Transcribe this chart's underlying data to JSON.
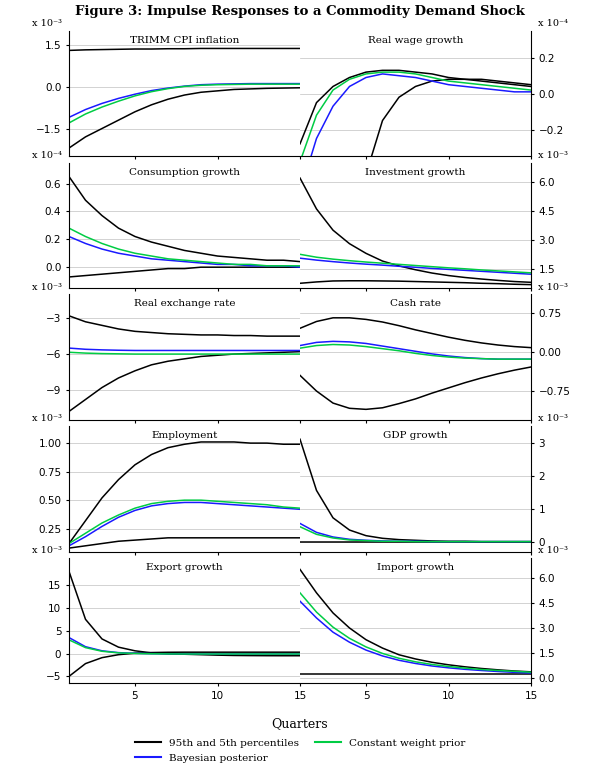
{
  "title": "Figure 3: Impulse Responses to a Commodity Demand Shock",
  "xlabel": "Quarters",
  "quarters": 15,
  "subplots": [
    {
      "title": "TRIMM CPI inflation",
      "scale_label": "x 10⁻³",
      "scale_side": "left",
      "ylim": [
        -2.5,
        2.0
      ],
      "yticks": [
        -1.5,
        0.0,
        1.5
      ],
      "black_upper": [
        1.3,
        1.32,
        1.33,
        1.34,
        1.35,
        1.35,
        1.36,
        1.36,
        1.37,
        1.37,
        1.37,
        1.37,
        1.37,
        1.37,
        1.37
      ],
      "black_lower": [
        -2.2,
        -1.8,
        -1.5,
        -1.2,
        -0.9,
        -0.65,
        -0.45,
        -0.3,
        -0.2,
        -0.15,
        -0.1,
        -0.08,
        -0.06,
        -0.05,
        -0.04
      ],
      "blue": [
        -1.1,
        -0.82,
        -0.6,
        -0.42,
        -0.27,
        -0.14,
        -0.05,
        0.02,
        0.07,
        0.09,
        0.1,
        0.11,
        0.11,
        0.11,
        0.11
      ],
      "green": [
        -1.3,
        -0.98,
        -0.73,
        -0.52,
        -0.33,
        -0.18,
        -0.07,
        0.01,
        0.05,
        0.07,
        0.08,
        0.09,
        0.09,
        0.09,
        0.09
      ]
    },
    {
      "title": "Real wage growth",
      "scale_label": "x 10⁻⁴",
      "scale_side": "right",
      "ylim": [
        -0.35,
        0.35
      ],
      "yticks": [
        -0.2,
        0.0,
        0.2
      ],
      "black_upper": [
        -0.28,
        -0.05,
        0.04,
        0.09,
        0.12,
        0.13,
        0.13,
        0.12,
        0.11,
        0.09,
        0.08,
        0.07,
        0.06,
        0.05,
        0.04
      ],
      "black_lower": [
        -3.0,
        -2.2,
        -1.5,
        -0.9,
        -0.45,
        -0.15,
        -0.02,
        0.04,
        0.07,
        0.08,
        0.08,
        0.08,
        0.07,
        0.06,
        0.05
      ],
      "blue": [
        -0.55,
        -0.25,
        -0.07,
        0.04,
        0.09,
        0.11,
        0.1,
        0.09,
        0.07,
        0.05,
        0.04,
        0.03,
        0.02,
        0.01,
        0.01
      ],
      "green": [
        -0.38,
        -0.12,
        0.02,
        0.08,
        0.11,
        0.12,
        0.12,
        0.11,
        0.09,
        0.07,
        0.06,
        0.05,
        0.04,
        0.03,
        0.02
      ]
    },
    {
      "title": "Consumption growth",
      "scale_label": "x 10⁻⁴",
      "scale_side": "left",
      "ylim": [
        -0.15,
        0.75
      ],
      "yticks": [
        0.0,
        0.2,
        0.4,
        0.6
      ],
      "black_upper": [
        0.65,
        0.48,
        0.37,
        0.28,
        0.22,
        0.18,
        0.15,
        0.12,
        0.1,
        0.08,
        0.07,
        0.06,
        0.05,
        0.05,
        0.04
      ],
      "black_lower": [
        -0.07,
        -0.06,
        -0.05,
        -0.04,
        -0.03,
        -0.02,
        -0.01,
        -0.01,
        0.0,
        0.0,
        0.0,
        0.0,
        0.0,
        0.0,
        0.0
      ],
      "blue": [
        0.22,
        0.17,
        0.13,
        0.1,
        0.08,
        0.06,
        0.05,
        0.04,
        0.03,
        0.02,
        0.02,
        0.01,
        0.01,
        0.01,
        0.0
      ],
      "green": [
        0.28,
        0.22,
        0.17,
        0.13,
        0.1,
        0.08,
        0.06,
        0.05,
        0.04,
        0.03,
        0.02,
        0.02,
        0.01,
        0.01,
        0.01
      ]
    },
    {
      "title": "Investment growth",
      "scale_label": "x 10⁻³",
      "scale_side": "right",
      "ylim": [
        0.5,
        7.0
      ],
      "yticks": [
        1.5,
        3.0,
        4.5,
        6.0
      ],
      "black_upper": [
        6.2,
        4.6,
        3.5,
        2.8,
        2.3,
        1.9,
        1.65,
        1.45,
        1.28,
        1.15,
        1.05,
        0.97,
        0.9,
        0.84,
        0.8
      ],
      "black_lower": [
        0.75,
        0.82,
        0.87,
        0.88,
        0.88,
        0.87,
        0.86,
        0.84,
        0.82,
        0.8,
        0.78,
        0.75,
        0.73,
        0.7,
        0.68
      ],
      "blue": [
        2.05,
        1.95,
        1.87,
        1.8,
        1.74,
        1.69,
        1.63,
        1.58,
        1.52,
        1.47,
        1.42,
        1.37,
        1.32,
        1.27,
        1.22
      ],
      "green": [
        2.25,
        2.1,
        2.0,
        1.92,
        1.85,
        1.79,
        1.73,
        1.67,
        1.61,
        1.55,
        1.5,
        1.44,
        1.39,
        1.34,
        1.29
      ]
    },
    {
      "title": "Real exchange rate",
      "scale_label": "x 10⁻³",
      "scale_side": "left",
      "ylim": [
        -11.5,
        -1.0
      ],
      "yticks": [
        -9,
        -6,
        -3
      ],
      "black_upper": [
        -2.8,
        -3.3,
        -3.6,
        -3.9,
        -4.1,
        -4.2,
        -4.3,
        -4.35,
        -4.4,
        -4.4,
        -4.45,
        -4.45,
        -4.5,
        -4.5,
        -4.5
      ],
      "black_lower": [
        -10.8,
        -9.8,
        -8.8,
        -8.0,
        -7.4,
        -6.9,
        -6.6,
        -6.4,
        -6.2,
        -6.1,
        -6.0,
        -5.95,
        -5.9,
        -5.85,
        -5.8
      ],
      "blue": [
        -5.5,
        -5.6,
        -5.65,
        -5.68,
        -5.7,
        -5.7,
        -5.7,
        -5.7,
        -5.7,
        -5.7,
        -5.7,
        -5.7,
        -5.7,
        -5.7,
        -5.7
      ],
      "green": [
        -5.85,
        -5.92,
        -5.96,
        -5.98,
        -6.0,
        -6.0,
        -6.0,
        -6.0,
        -6.0,
        -6.0,
        -6.0,
        -6.0,
        -6.0,
        -6.0,
        -6.0
      ]
    },
    {
      "title": "Cash rate",
      "scale_label": "x 10⁻³",
      "scale_side": "right",
      "ylim": [
        -1.3,
        1.1
      ],
      "yticks": [
        -0.75,
        0.0,
        0.75
      ],
      "black_upper": [
        0.45,
        0.58,
        0.65,
        0.65,
        0.62,
        0.57,
        0.5,
        0.42,
        0.35,
        0.28,
        0.22,
        0.17,
        0.13,
        0.1,
        0.08
      ],
      "black_lower": [
        -0.45,
        -0.75,
        -0.98,
        -1.08,
        -1.1,
        -1.07,
        -0.99,
        -0.9,
        -0.79,
        -0.69,
        -0.59,
        -0.5,
        -0.42,
        -0.35,
        -0.29
      ],
      "blue": [
        0.12,
        0.18,
        0.2,
        0.19,
        0.16,
        0.11,
        0.06,
        0.01,
        -0.04,
        -0.08,
        -0.11,
        -0.13,
        -0.14,
        -0.14,
        -0.14
      ],
      "green": [
        0.07,
        0.12,
        0.14,
        0.13,
        0.1,
        0.06,
        0.02,
        -0.03,
        -0.07,
        -0.1,
        -0.12,
        -0.13,
        -0.14,
        -0.14,
        -0.14
      ]
    },
    {
      "title": "Employment",
      "scale_label": "x 10⁻³",
      "scale_side": "left",
      "ylim": [
        0.05,
        1.15
      ],
      "yticks": [
        0.25,
        0.5,
        0.75,
        1.0
      ],
      "black_upper": [
        0.12,
        0.32,
        0.52,
        0.68,
        0.81,
        0.9,
        0.96,
        0.99,
        1.01,
        1.01,
        1.01,
        1.0,
        1.0,
        0.99,
        0.99
      ],
      "black_lower": [
        0.08,
        0.1,
        0.12,
        0.14,
        0.15,
        0.16,
        0.17,
        0.17,
        0.17,
        0.17,
        0.17,
        0.17,
        0.17,
        0.17,
        0.17
      ],
      "blue": [
        0.1,
        0.18,
        0.27,
        0.35,
        0.41,
        0.45,
        0.47,
        0.48,
        0.48,
        0.47,
        0.46,
        0.45,
        0.44,
        0.43,
        0.42
      ],
      "green": [
        0.12,
        0.21,
        0.3,
        0.37,
        0.43,
        0.47,
        0.49,
        0.5,
        0.5,
        0.49,
        0.48,
        0.47,
        0.46,
        0.44,
        0.43
      ]
    },
    {
      "title": "GDP growth",
      "scale_label": "x 10⁻³",
      "scale_side": "right",
      "ylim": [
        -0.3,
        3.5
      ],
      "yticks": [
        0,
        1,
        2,
        3
      ],
      "black_upper": [
        3.1,
        1.55,
        0.72,
        0.35,
        0.18,
        0.1,
        0.06,
        0.04,
        0.02,
        0.01,
        0.01,
        0.0,
        0.0,
        0.0,
        0.0
      ],
      "black_lower": [
        0.0,
        0.0,
        0.0,
        0.0,
        0.0,
        0.0,
        0.0,
        0.0,
        0.0,
        0.0,
        0.0,
        0.0,
        0.0,
        0.0,
        0.0
      ],
      "blue": [
        0.55,
        0.28,
        0.14,
        0.07,
        0.04,
        0.02,
        0.01,
        0.01,
        0.0,
        0.0,
        0.0,
        0.0,
        0.0,
        0.0,
        0.0
      ],
      "green": [
        0.45,
        0.22,
        0.11,
        0.05,
        0.03,
        0.01,
        0.01,
        0.0,
        0.0,
        0.0,
        0.0,
        0.0,
        0.0,
        0.0,
        0.0
      ]
    },
    {
      "title": "Export growth",
      "scale_label": "x 10⁻³",
      "scale_side": "left",
      "ylim": [
        -6.5,
        21.0
      ],
      "yticks": [
        -5,
        0,
        5,
        10,
        15
      ],
      "black_upper": [
        18.0,
        7.5,
        3.2,
        1.4,
        0.6,
        0.15,
        -0.05,
        -0.15,
        -0.25,
        -0.35,
        -0.42,
        -0.45,
        -0.47,
        -0.48,
        -0.48
      ],
      "black_lower": [
        -5.0,
        -2.2,
        -0.9,
        -0.25,
        0.08,
        0.22,
        0.28,
        0.3,
        0.3,
        0.3,
        0.3,
        0.3,
        0.3,
        0.3,
        0.3
      ],
      "blue": [
        3.5,
        1.5,
        0.6,
        0.2,
        0.05,
        -0.02,
        -0.06,
        -0.08,
        -0.09,
        -0.09,
        -0.09,
        -0.09,
        -0.09,
        -0.09,
        -0.09
      ],
      "green": [
        3.0,
        1.3,
        0.5,
        0.15,
        0.02,
        -0.05,
        -0.08,
        -0.1,
        -0.1,
        -0.1,
        -0.1,
        -0.1,
        -0.1,
        -0.1,
        -0.1
      ]
    },
    {
      "title": "Import growth",
      "scale_label": "x 10⁻³",
      "scale_side": "right",
      "ylim": [
        -0.3,
        7.2
      ],
      "yticks": [
        0.0,
        1.5,
        3.0,
        4.5,
        6.0
      ],
      "black_upper": [
        6.5,
        5.1,
        3.9,
        3.0,
        2.3,
        1.8,
        1.4,
        1.15,
        0.95,
        0.8,
        0.68,
        0.58,
        0.5,
        0.43,
        0.38
      ],
      "black_lower": [
        0.28,
        0.28,
        0.28,
        0.28,
        0.28,
        0.28,
        0.28,
        0.28,
        0.28,
        0.28,
        0.28,
        0.28,
        0.28,
        0.28,
        0.28
      ],
      "blue": [
        4.6,
        3.6,
        2.75,
        2.15,
        1.68,
        1.33,
        1.07,
        0.88,
        0.73,
        0.62,
        0.53,
        0.46,
        0.4,
        0.35,
        0.31
      ],
      "green": [
        5.1,
        3.95,
        3.05,
        2.38,
        1.87,
        1.48,
        1.19,
        0.98,
        0.82,
        0.7,
        0.6,
        0.52,
        0.46,
        0.41,
        0.36
      ]
    }
  ],
  "colors": {
    "black": "#000000",
    "blue": "#1a1aff",
    "green": "#00cc44"
  },
  "legend": [
    {
      "label": "95th and 5th percentiles",
      "color": "#000000"
    },
    {
      "label": "Bayesian posterior",
      "color": "#1a1aff"
    },
    {
      "label": "Constant weight prior",
      "color": "#00cc44"
    }
  ],
  "fig_width": 6.0,
  "fig_height": 7.72,
  "dpi": 100
}
